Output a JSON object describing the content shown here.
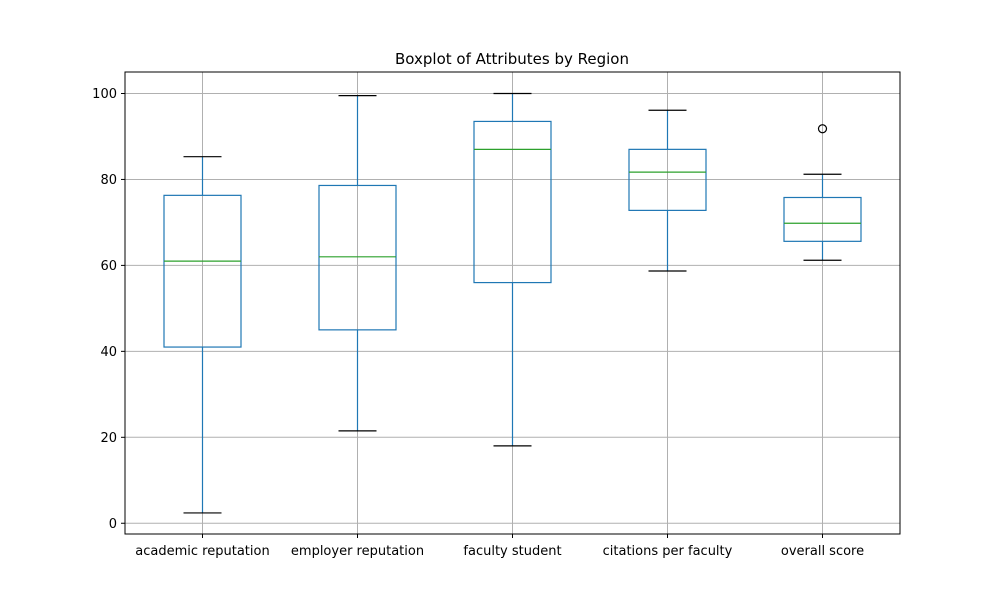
{
  "chart_data": {
    "type": "boxplot",
    "title": "Boxplot of Attributes by Region",
    "xlabel": "",
    "ylabel": "",
    "ylim": [
      -2.5,
      105
    ],
    "yticks": [
      0,
      20,
      40,
      60,
      80,
      100
    ],
    "grid": true,
    "categories": [
      "academic reputation",
      "employer reputation",
      "faculty student",
      "citations per faculty",
      "overall score"
    ],
    "boxes": [
      {
        "whisker_low": 2.4,
        "q1": 41.0,
        "median": 61.0,
        "q3": 76.3,
        "whisker_high": 85.3,
        "outliers": []
      },
      {
        "whisker_low": 21.5,
        "q1": 45.0,
        "median": 62.0,
        "q3": 78.6,
        "whisker_high": 99.5,
        "outliers": []
      },
      {
        "whisker_low": 18.0,
        "q1": 56.0,
        "median": 87.0,
        "q3": 93.5,
        "whisker_high": 100.0,
        "outliers": []
      },
      {
        "whisker_low": 58.7,
        "q1": 72.8,
        "median": 81.7,
        "q3": 87.0,
        "whisker_high": 96.1,
        "outliers": []
      },
      {
        "whisker_low": 61.2,
        "q1": 65.6,
        "median": 69.8,
        "q3": 75.8,
        "whisker_high": 81.2,
        "outliers": [
          91.8
        ]
      }
    ],
    "colors": {
      "box": "#1f77b4",
      "median": "#2ca02c",
      "whisker_cap": "#000000",
      "grid": "#b0b0b0",
      "outlier": "#000000"
    }
  }
}
